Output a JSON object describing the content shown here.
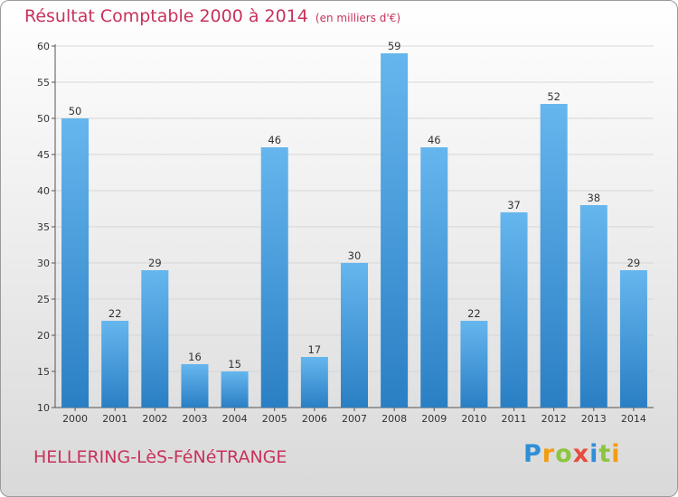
{
  "chart_data": {
    "type": "bar",
    "title": "Résultat Comptable 2000 à 2014",
    "subtitle": "(en milliers d'€)",
    "categories": [
      "2000",
      "2001",
      "2002",
      "2003",
      "2004",
      "2005",
      "2006",
      "2007",
      "2008",
      "2009",
      "2010",
      "2011",
      "2012",
      "2013",
      "2014"
    ],
    "values": [
      50,
      22,
      29,
      16,
      15,
      46,
      17,
      30,
      59,
      46,
      22,
      37,
      52,
      38,
      29
    ],
    "ylim": [
      10,
      60
    ],
    "yticks": [
      10,
      15,
      20,
      25,
      30,
      35,
      40,
      45,
      50,
      55,
      60
    ],
    "grid": true,
    "xlabel": "",
    "ylabel": ""
  },
  "location": "HELLERING-LèS-FéNéTRANGE",
  "logo_letters": [
    "P",
    "r",
    "o",
    "x",
    "i",
    "t",
    "i"
  ],
  "colors": {
    "title": "#c8325a",
    "bar_light": "#66b6ee",
    "bar_dark": "#2a7fc4",
    "grid": "#d6d6d6",
    "logo": [
      "#2e8fd6",
      "#f39c12",
      "#8cc63f",
      "#e74c3c",
      "#2e8fd6",
      "#8cc63f",
      "#f39c12"
    ]
  }
}
